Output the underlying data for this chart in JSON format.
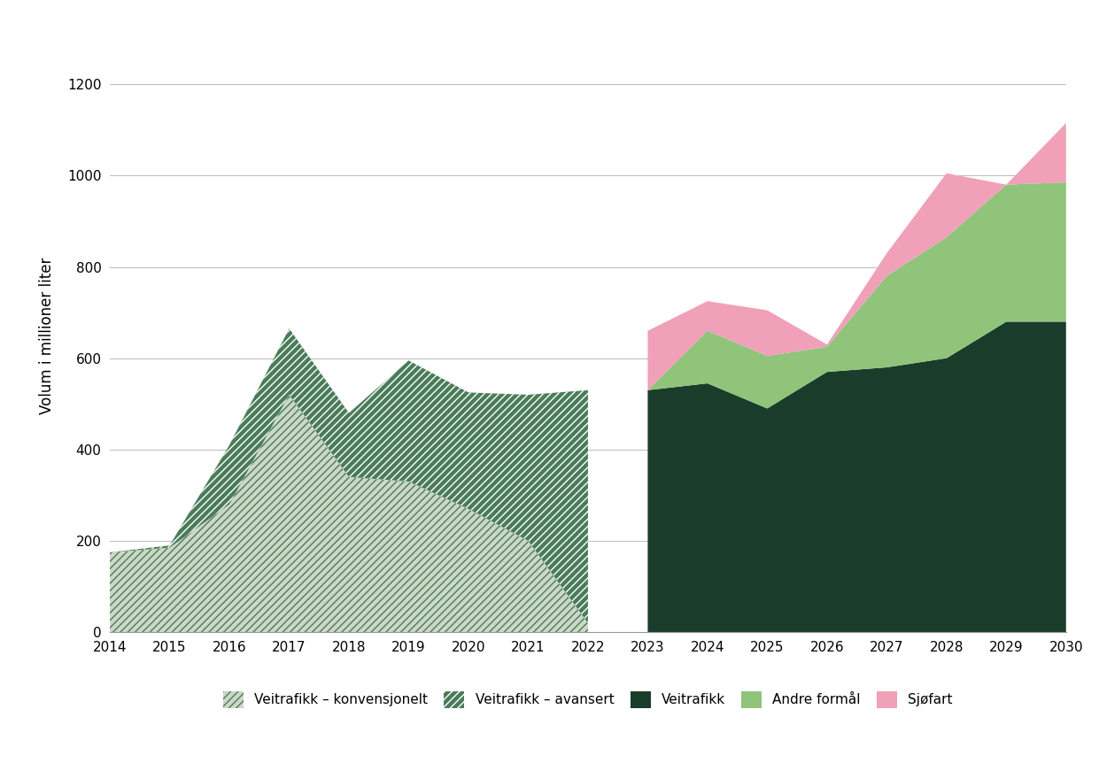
{
  "years_historical": [
    2014,
    2015,
    2016,
    2017,
    2018,
    2019,
    2020,
    2021,
    2022
  ],
  "konvensjonelt": [
    175,
    185,
    280,
    520,
    340,
    330,
    270,
    200,
    20
  ],
  "avansert": [
    0,
    5,
    130,
    145,
    140,
    265,
    255,
    320,
    510
  ],
  "years_projected": [
    2023,
    2024,
    2025,
    2026,
    2027,
    2028,
    2029,
    2030
  ],
  "veitrafikk": [
    530,
    545,
    490,
    570,
    580,
    600,
    680,
    680
  ],
  "andre_formal": [
    0,
    115,
    115,
    55,
    200,
    265,
    300,
    305
  ],
  "sjofart": [
    130,
    65,
    100,
    5,
    50,
    140,
    0,
    130
  ],
  "color_konvensjonelt_face": "#ccd8c5",
  "color_konvensjonelt_hatch_edge": "#4a7c59",
  "color_avansert_face": "#4a7c59",
  "color_avansert_hatch_edge": "#ffffff",
  "color_veitrafikk": "#1a3d2b",
  "color_andre_formal": "#8fc47a",
  "color_sjofart": "#f0a0b8",
  "ylabel": "Volum i millioner liter",
  "ylim": [
    0,
    1300
  ],
  "yticks": [
    0,
    200,
    400,
    600,
    800,
    1000,
    1200
  ],
  "legend_labels": [
    "Veitrafikk – konvensjonelt",
    "Veitrafikk – avansert",
    "Veitrafikk",
    "Andre formål",
    "Sjøfart"
  ],
  "background_color": "#ffffff",
  "grid_color": "#bbbbbb"
}
